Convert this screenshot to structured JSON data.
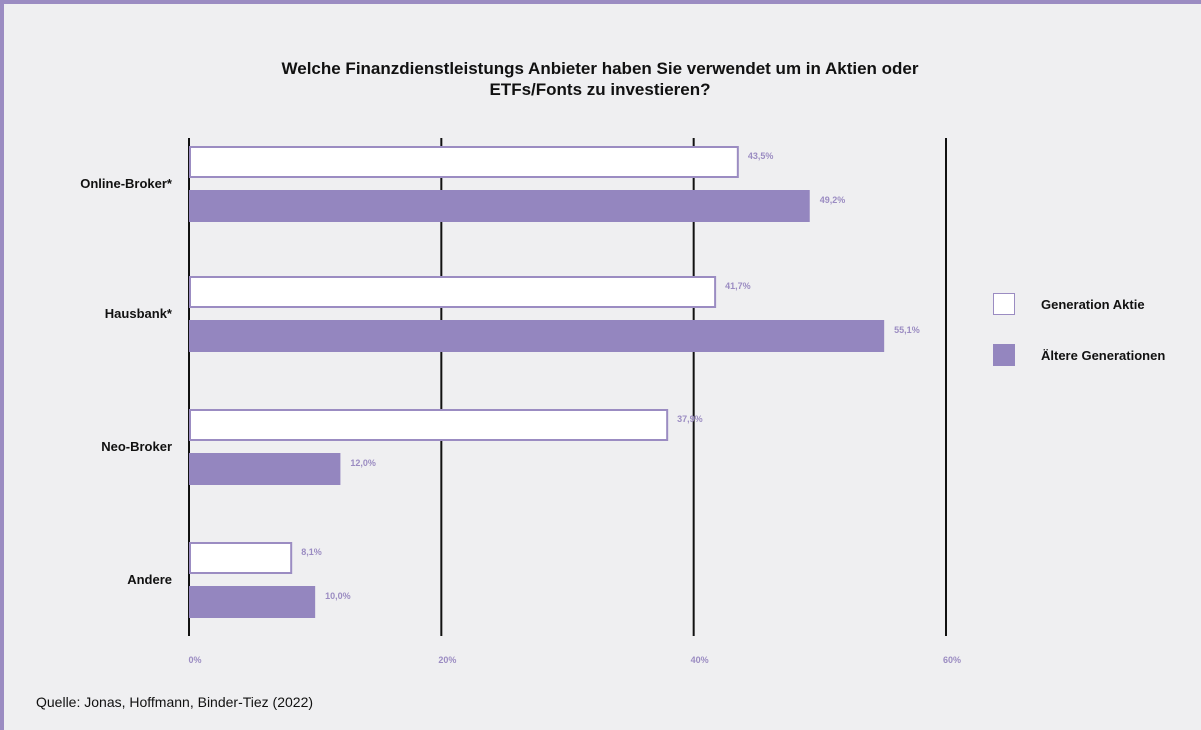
{
  "colors": {
    "frame_border": "#9b8cc2",
    "background": "#efeff1",
    "series_a_fill": "#ffffff",
    "series_a_stroke": "#9b8cc2",
    "series_b_fill": "#9486bf",
    "value_label": "#9b8cc2",
    "gridline": "#111111"
  },
  "chart_data": {
    "type": "bar",
    "orientation": "horizontal",
    "title_lines": [
      "Welche Finanzdienstleistungs Anbieter haben Sie verwendet um in Aktien oder",
      "ETFs/Fonts zu investieren?"
    ],
    "categories": [
      "Online-Broker*",
      "Hausbank*",
      "Neo-Broker",
      "Andere"
    ],
    "series": [
      {
        "name": "Generation Aktie",
        "values": [
          43.5,
          41.7,
          37.9,
          8.1
        ],
        "labels": [
          "43,5%",
          "41,7%",
          "37,9%",
          "8,1%"
        ]
      },
      {
        "name": "Ältere Generationen",
        "values": [
          49.2,
          55.1,
          12.0,
          10.0
        ],
        "labels": [
          "49,2%",
          "55,1%",
          "12,0%",
          "10,0%"
        ]
      }
    ],
    "xlim": [
      0,
      60
    ],
    "xticks": [
      0,
      20,
      40,
      60
    ],
    "xtick_labels": [
      "0%",
      "20%",
      "40%",
      "60%"
    ],
    "grid": true,
    "legend_position": "right"
  },
  "source": "Quelle: Jonas, Hoffmann, Binder-Tiez (2022)"
}
